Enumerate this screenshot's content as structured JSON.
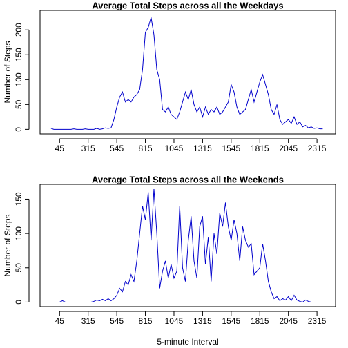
{
  "chart_data": [
    {
      "type": "line",
      "title": "Average Total Steps across all the Weekdays",
      "y_label": "Number of Steps",
      "x": [
        0,
        3,
        6,
        9,
        12,
        15,
        18,
        21,
        24,
        27,
        30,
        33,
        36,
        39,
        42,
        45,
        48,
        51,
        54,
        57,
        60,
        63,
        66,
        69,
        72,
        75,
        78,
        81,
        84,
        87,
        90,
        93,
        96,
        99,
        102,
        105,
        108,
        111,
        114,
        117,
        120,
        123,
        126,
        129,
        132,
        135,
        138,
        141,
        144,
        147,
        150,
        153,
        156,
        159,
        162,
        165,
        168,
        171,
        174,
        177,
        180,
        183,
        186,
        189,
        192,
        195,
        198,
        201,
        204,
        207,
        210,
        213,
        216,
        219,
        222,
        225,
        228,
        231,
        234,
        237,
        240,
        243,
        246,
        249,
        252,
        255,
        258,
        261,
        264,
        267,
        270,
        273,
        276,
        279,
        282,
        285
      ],
      "series": [
        {
          "name": "Weekdays",
          "color": "#0000cc",
          "values": [
            2,
            0,
            0,
            0,
            0,
            0,
            0,
            0,
            1,
            0,
            0,
            0,
            1,
            0,
            0,
            0,
            2,
            0,
            1,
            3,
            2,
            3,
            20,
            45,
            65,
            75,
            55,
            60,
            55,
            65,
            70,
            80,
            120,
            195,
            205,
            225,
            190,
            120,
            100,
            40,
            35,
            45,
            30,
            25,
            20,
            35,
            55,
            75,
            60,
            80,
            50,
            35,
            45,
            25,
            45,
            30,
            40,
            35,
            45,
            30,
            35,
            45,
            55,
            90,
            75,
            45,
            30,
            35,
            40,
            60,
            80,
            55,
            75,
            95,
            110,
            90,
            70,
            40,
            30,
            50,
            20,
            10,
            15,
            20,
            12,
            25,
            10,
            15,
            5,
            8,
            3,
            5,
            2,
            3,
            1,
            1
          ]
        }
      ],
      "xlim": [
        -11.48,
        298.48
      ],
      "xticks": [
        {
          "value": 9,
          "label": "45"
        },
        {
          "value": 39,
          "label": "315"
        },
        {
          "value": 69,
          "label": "545"
        },
        {
          "value": 99,
          "label": "815"
        },
        {
          "value": 129,
          "label": "1045"
        },
        {
          "value": 159,
          "label": "1315"
        },
        {
          "value": 189,
          "label": "1545"
        },
        {
          "value": 219,
          "label": "1815"
        },
        {
          "value": 249,
          "label": "2045"
        },
        {
          "value": 279,
          "label": "2315"
        }
      ],
      "ylim": [
        -9.2,
        239.2
      ],
      "yticks": [
        0,
        50,
        100,
        150,
        200
      ]
    },
    {
      "type": "line",
      "title": "Average Total Steps across all the Weekends",
      "y_label": "Number of Steps",
      "x_label": "5-minute Interval",
      "x": [
        0,
        3,
        6,
        9,
        12,
        15,
        18,
        21,
        24,
        27,
        30,
        33,
        36,
        39,
        42,
        45,
        48,
        51,
        54,
        57,
        60,
        63,
        66,
        69,
        72,
        75,
        78,
        81,
        84,
        87,
        90,
        93,
        96,
        99,
        102,
        105,
        108,
        111,
        114,
        117,
        120,
        123,
        126,
        129,
        132,
        135,
        138,
        141,
        144,
        147,
        150,
        153,
        156,
        159,
        162,
        165,
        168,
        171,
        174,
        177,
        180,
        183,
        186,
        189,
        192,
        195,
        198,
        201,
        204,
        207,
        210,
        213,
        216,
        219,
        222,
        225,
        228,
        231,
        234,
        237,
        240,
        243,
        246,
        249,
        252,
        255,
        258,
        261,
        264,
        267,
        270,
        273,
        276,
        279,
        282,
        285
      ],
      "series": [
        {
          "name": "Weekends",
          "color": "#0000cc",
          "values": [
            0,
            0,
            0,
            0,
            2,
            0,
            0,
            0,
            0,
            0,
            0,
            0,
            0,
            0,
            0,
            1,
            3,
            2,
            4,
            2,
            5,
            2,
            5,
            10,
            20,
            15,
            30,
            25,
            40,
            30,
            60,
            100,
            140,
            120,
            160,
            90,
            165,
            100,
            20,
            45,
            60,
            35,
            55,
            35,
            45,
            140,
            50,
            30,
            90,
            125,
            60,
            35,
            110,
            125,
            55,
            95,
            30,
            100,
            70,
            130,
            110,
            145,
            110,
            90,
            120,
            100,
            60,
            110,
            90,
            80,
            85,
            40,
            45,
            50,
            85,
            60,
            30,
            15,
            5,
            8,
            2,
            5,
            3,
            8,
            2,
            10,
            3,
            1,
            0,
            3,
            1,
            0,
            0,
            0,
            0,
            0
          ]
        }
      ],
      "xlim": [
        -11.48,
        298.48
      ],
      "xticks": [
        {
          "value": 9,
          "label": "45"
        },
        {
          "value": 39,
          "label": "315"
        },
        {
          "value": 69,
          "label": "545"
        },
        {
          "value": 99,
          "label": "815"
        },
        {
          "value": 129,
          "label": "1045"
        },
        {
          "value": 159,
          "label": "1315"
        },
        {
          "value": 189,
          "label": "1545"
        },
        {
          "value": 219,
          "label": "1815"
        },
        {
          "value": 249,
          "label": "2045"
        },
        {
          "value": 279,
          "label": "2315"
        }
      ],
      "ylim": [
        -6.6,
        171.6
      ],
      "yticks": [
        0,
        50,
        100,
        150
      ]
    }
  ]
}
